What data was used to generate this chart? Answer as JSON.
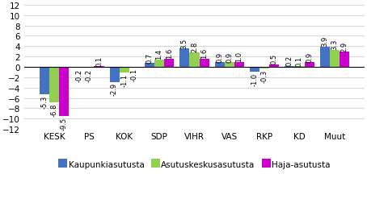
{
  "categories": [
    "KESK",
    "PS",
    "KOK",
    "SDP",
    "VIHR",
    "VAS",
    "RKP",
    "KD",
    "Muut"
  ],
  "kaupunki": [
    -5.3,
    -0.2,
    -2.9,
    0.7,
    3.5,
    0.9,
    -1.0,
    0.2,
    3.9
  ],
  "asutuskeskus": [
    -6.8,
    -0.2,
    -1.1,
    1.4,
    2.8,
    0.9,
    -0.3,
    0.1,
    3.3
  ],
  "haja": [
    -9.5,
    0.1,
    -0.1,
    1.6,
    1.6,
    1.0,
    0.5,
    0.9,
    2.9
  ],
  "colors": {
    "kaupunki": "#4472C4",
    "asutuskeskus": "#92D050",
    "haja": "#CC00CC"
  },
  "legend_labels": [
    "Kaupunkiasutusta",
    "Asutuskeskusasutusta",
    "Haja-asutusta"
  ],
  "ylim": [
    -12,
    12
  ],
  "yticks": [
    -12,
    -10,
    -8,
    -6,
    -4,
    -2,
    0,
    2,
    4,
    6,
    8,
    10,
    12
  ],
  "background_color": "#FFFFFF",
  "grid_color": "#D9D9D9",
  "label_fontsize": 6.0,
  "bar_width": 0.28
}
